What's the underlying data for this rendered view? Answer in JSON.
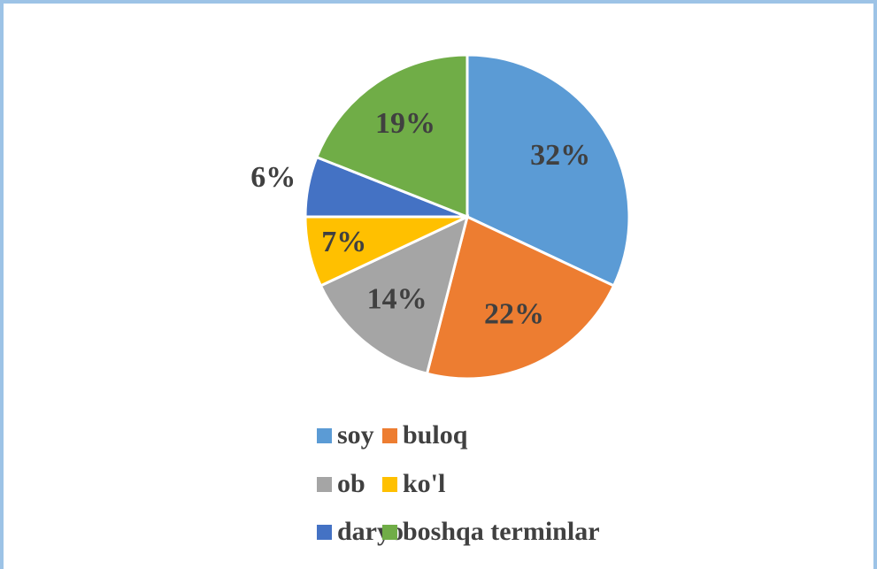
{
  "chart_data": {
    "type": "pie",
    "categories": [
      "soy",
      "buloq",
      "ob",
      "ko'l",
      "daryo",
      "boshqa terminlar"
    ],
    "values": [
      32,
      22,
      14,
      7,
      6,
      19
    ],
    "value_labels": [
      "32%",
      "22%",
      "14%",
      "7%",
      "6%",
      "19%"
    ],
    "colors": [
      "#5b9bd5",
      "#ed7d31",
      "#a5a5a5",
      "#ffc000",
      "#4472c4",
      "#70ad47"
    ],
    "legend": "bottom"
  }
}
